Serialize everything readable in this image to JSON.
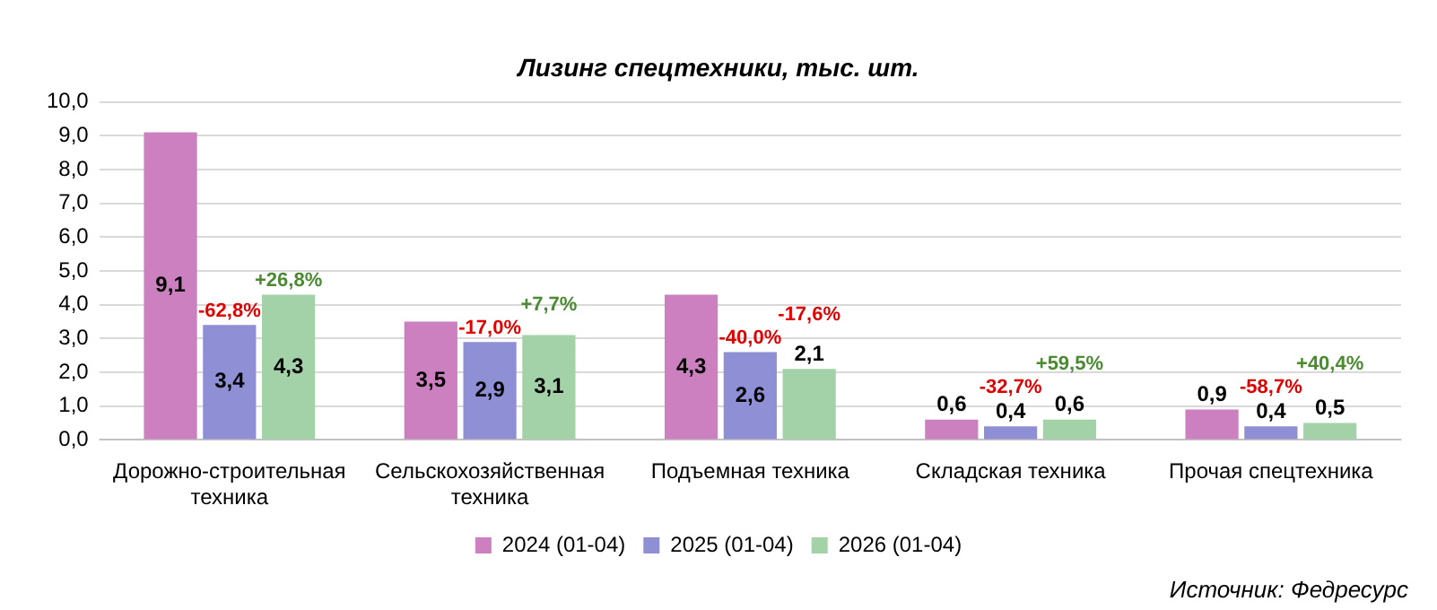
{
  "chart_data": {
    "type": "bar",
    "title": "Лизинг спецтехники, тыс. шт.",
    "categories": [
      "Дорожно-строительная техника",
      "Сельскохозяйственная техника",
      "Подъемная техника",
      "Складская техника",
      "Прочая спецтехника"
    ],
    "series": [
      {
        "name": "2024 (01-04)",
        "color": "#cc80c0",
        "values": [
          9.1,
          3.5,
          4.3,
          0.6,
          0.9
        ],
        "value_labels": [
          "9,1",
          "3,5",
          "4,3",
          "0,6",
          "0,9"
        ]
      },
      {
        "name": "2025 (01-04)",
        "color": "#8f8fd6",
        "values": [
          3.4,
          2.9,
          2.6,
          0.4,
          0.4
        ],
        "value_labels": [
          "3,4",
          "2,9",
          "2,6",
          "0,4",
          "0,4"
        ]
      },
      {
        "name": "2026 (01-04)",
        "color": "#a3d1a8",
        "values": [
          4.3,
          3.1,
          2.1,
          0.6,
          0.5
        ],
        "value_labels": [
          "4,3",
          "3,1",
          "2,1",
          "0,6",
          "0,5"
        ]
      }
    ],
    "ylim": [
      0,
      10
    ],
    "yticks": [
      {
        "value": 0,
        "label": "0,0"
      },
      {
        "value": 1,
        "label": "1,0"
      },
      {
        "value": 2,
        "label": "2,0"
      },
      {
        "value": 3,
        "label": "3,0"
      },
      {
        "value": 4,
        "label": "4,0"
      },
      {
        "value": 5,
        "label": "5,0"
      },
      {
        "value": 6,
        "label": "6,0"
      },
      {
        "value": 7,
        "label": "7,0"
      },
      {
        "value": 8,
        "label": "8,0"
      },
      {
        "value": 9,
        "label": "9,0"
      },
      {
        "value": 10,
        "label": "10,0"
      }
    ],
    "grid": "y",
    "legend": "bottom",
    "annotations": [
      "-62,8%",
      "+26,8%",
      "-17,0%",
      "+7,7%",
      "-40,0%",
      "-17,6%",
      "-32,7%",
      "+59,5%",
      "-58,7%",
      "+40,4%",
      "Источник: Федресурс"
    ]
  }
}
